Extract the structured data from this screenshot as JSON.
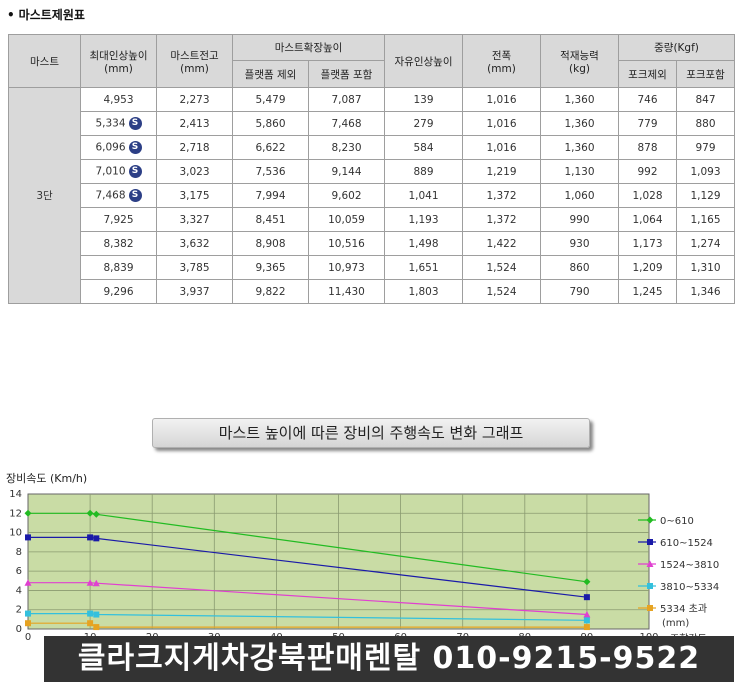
{
  "section_title": "마스트제원표",
  "table": {
    "headers": {
      "mast": "마스트",
      "max_lift": "최대인상높이",
      "max_lift_unit": "(mm)",
      "mast_height": "마스트전고",
      "mast_height_unit": "(mm)",
      "extended": "마스트확장높이",
      "ext_platform_excl": "플랫폼 제외",
      "ext_platform_incl": "플랫폼 포함",
      "free_lift": "자유인상높이",
      "width": "전폭",
      "width_unit": "(mm)",
      "capacity": "적재능력",
      "capacity_unit": "(kg)",
      "weight": "중량(Kgf)",
      "weight_excl": "포크제외",
      "weight_incl": "포크포함"
    },
    "stage": "3단",
    "badge_letter": "S",
    "rows": [
      {
        "max_lift": "4,953",
        "s": false,
        "mast_height": "2,273",
        "ext_excl": "5,479",
        "ext_incl": "7,087",
        "free_lift": "139",
        "width": "1,016",
        "capacity": "1,360",
        "w_excl": "746",
        "w_incl": "847"
      },
      {
        "max_lift": "5,334",
        "s": true,
        "mast_height": "2,413",
        "ext_excl": "5,860",
        "ext_incl": "7,468",
        "free_lift": "279",
        "width": "1,016",
        "capacity": "1,360",
        "w_excl": "779",
        "w_incl": "880"
      },
      {
        "max_lift": "6,096",
        "s": true,
        "mast_height": "2,718",
        "ext_excl": "6,622",
        "ext_incl": "8,230",
        "free_lift": "584",
        "width": "1,016",
        "capacity": "1,360",
        "w_excl": "878",
        "w_incl": "979"
      },
      {
        "max_lift": "7,010",
        "s": true,
        "mast_height": "3,023",
        "ext_excl": "7,536",
        "ext_incl": "9,144",
        "free_lift": "889",
        "width": "1,219",
        "capacity": "1,130",
        "w_excl": "992",
        "w_incl": "1,093"
      },
      {
        "max_lift": "7,468",
        "s": true,
        "mast_height": "3,175",
        "ext_excl": "7,994",
        "ext_incl": "9,602",
        "free_lift": "1,041",
        "width": "1,372",
        "capacity": "1,060",
        "w_excl": "1,028",
        "w_incl": "1,129"
      },
      {
        "max_lift": "7,925",
        "s": false,
        "mast_height": "3,327",
        "ext_excl": "8,451",
        "ext_incl": "10,059",
        "free_lift": "1,193",
        "width": "1,372",
        "capacity": "990",
        "w_excl": "1,064",
        "w_incl": "1,165"
      },
      {
        "max_lift": "8,382",
        "s": false,
        "mast_height": "3,632",
        "ext_excl": "8,908",
        "ext_incl": "10,516",
        "free_lift": "1,498",
        "width": "1,422",
        "capacity": "930",
        "w_excl": "1,173",
        "w_incl": "1,274"
      },
      {
        "max_lift": "8,839",
        "s": false,
        "mast_height": "3,785",
        "ext_excl": "9,365",
        "ext_incl": "10,973",
        "free_lift": "1,651",
        "width": "1,524",
        "capacity": "860",
        "w_excl": "1,209",
        "w_incl": "1,310"
      },
      {
        "max_lift": "9,296",
        "s": false,
        "mast_height": "3,937",
        "ext_excl": "9,822",
        "ext_incl": "11,430",
        "free_lift": "1,803",
        "width": "1,524",
        "capacity": "790",
        "w_excl": "1,245",
        "w_incl": "1,346"
      }
    ]
  },
  "graph_title": "마스트 높이에 따른 장비의 주행속도 변화 그래프",
  "chart_data": {
    "type": "line",
    "title": "마스트 높이에 따른 장비의 주행속도 변화 그래프",
    "ylabel": "장비속도 (Km/h)",
    "xlabel": "조향각도",
    "xlim": [
      0,
      100
    ],
    "ylim": [
      0,
      14
    ],
    "x_ticks": [
      0,
      10,
      20,
      30,
      40,
      50,
      60,
      70,
      80,
      90,
      100
    ],
    "y_ticks": [
      0,
      2,
      4,
      6,
      8,
      10,
      12,
      14
    ],
    "grid": true,
    "legend_position": "right",
    "legend_unit": "(mm)",
    "background": "#c9dca5",
    "series": [
      {
        "name": "0~610",
        "color": "#22bb22",
        "marker": "diamond",
        "points": [
          [
            0,
            12
          ],
          [
            10,
            12
          ],
          [
            11,
            11.9
          ],
          [
            90,
            4.9
          ]
        ]
      },
      {
        "name": "610~1524",
        "color": "#1a1aa8",
        "marker": "square",
        "points": [
          [
            0,
            9.5
          ],
          [
            10,
            9.5
          ],
          [
            11,
            9.4
          ],
          [
            90,
            3.3
          ]
        ]
      },
      {
        "name": "1524~3810",
        "color": "#e040d0",
        "marker": "triangle",
        "points": [
          [
            0,
            4.8
          ],
          [
            10,
            4.8
          ],
          [
            11,
            4.75
          ],
          [
            90,
            1.5
          ]
        ]
      },
      {
        "name": "3810~5334",
        "color": "#33c0dd",
        "marker": "square",
        "points": [
          [
            0,
            1.6
          ],
          [
            10,
            1.6
          ],
          [
            11,
            1.5
          ],
          [
            90,
            0.9
          ]
        ]
      },
      {
        "name": "5334 초과",
        "color": "#e6a322",
        "marker": "square",
        "points": [
          [
            0,
            0.6
          ],
          [
            10,
            0.6
          ],
          [
            11,
            0.2
          ],
          [
            90,
            0.2
          ]
        ]
      }
    ]
  },
  "banner": "클라크지게차강북판매렌탈 010-9215-9522"
}
